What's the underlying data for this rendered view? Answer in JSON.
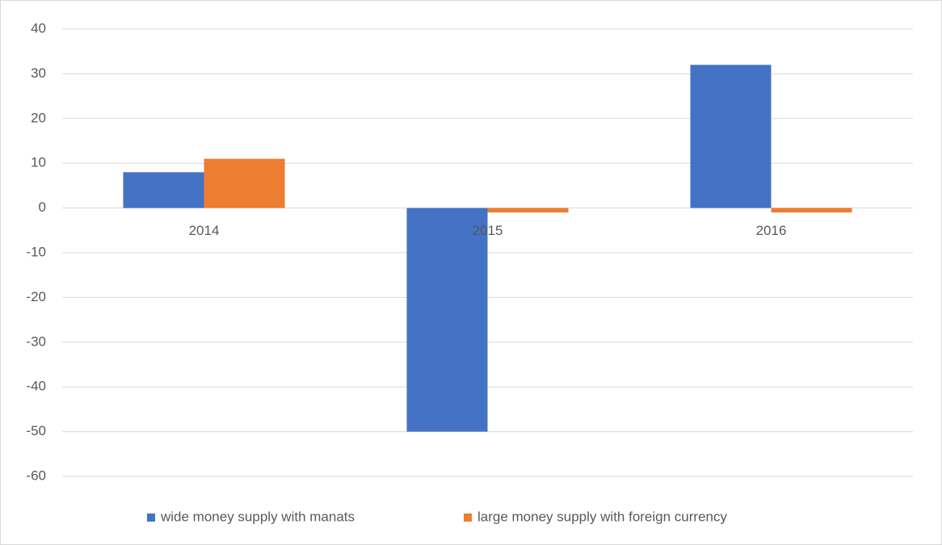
{
  "chart_data": {
    "type": "bar",
    "categories": [
      "2014",
      "2015",
      "2016"
    ],
    "series": [
      {
        "name": "wide money supply with manats",
        "color": "#4472c4",
        "values": [
          8,
          -50,
          32
        ]
      },
      {
        "name": "large money supply with foreign currency",
        "color": "#ed7d31",
        "values": [
          11,
          -1,
          -1
        ]
      }
    ],
    "ylim": [
      -60,
      40
    ],
    "yticks": [
      -60,
      -50,
      -40,
      -30,
      -20,
      -10,
      0,
      10,
      20,
      30,
      40
    ],
    "grid": true,
    "legend": "bottom"
  }
}
